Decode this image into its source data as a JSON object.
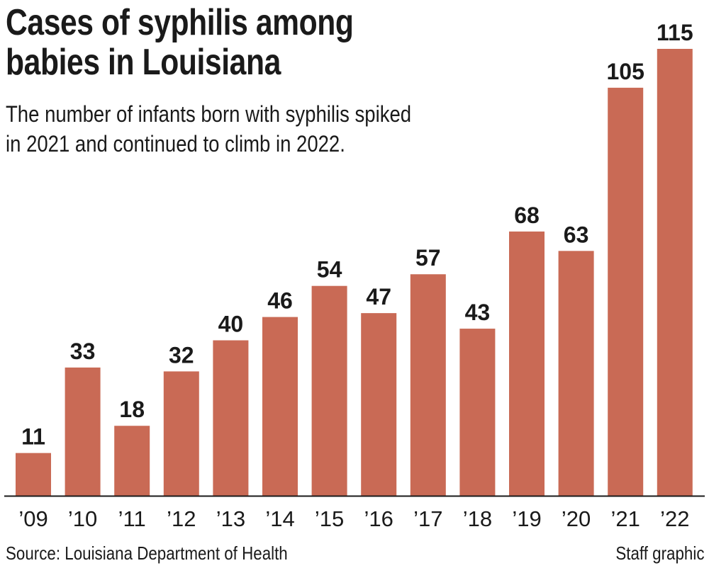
{
  "chart_data": {
    "type": "bar",
    "title_lines": [
      "Cases of syphilis among",
      "babies in Louisiana"
    ],
    "subtitle_lines": [
      "The number of infants born with syphilis spiked",
      "in 2021 and continued to climb in 2022."
    ],
    "categories": [
      "’09",
      "’10",
      "’11",
      "’12",
      "’13",
      "’14",
      "’15",
      "’16",
      "’17",
      "’18",
      "’19",
      "’20",
      "’21",
      "’22"
    ],
    "values": [
      11,
      33,
      18,
      32,
      40,
      46,
      54,
      47,
      57,
      43,
      68,
      63,
      105,
      115
    ],
    "ylim": [
      0,
      115
    ],
    "grid": false,
    "data_labels": true,
    "bar_color": "#c96a55",
    "axis_color": "#1a1a1a",
    "source": "Source: Louisiana Department of Health",
    "credit": "Staff graphic"
  }
}
